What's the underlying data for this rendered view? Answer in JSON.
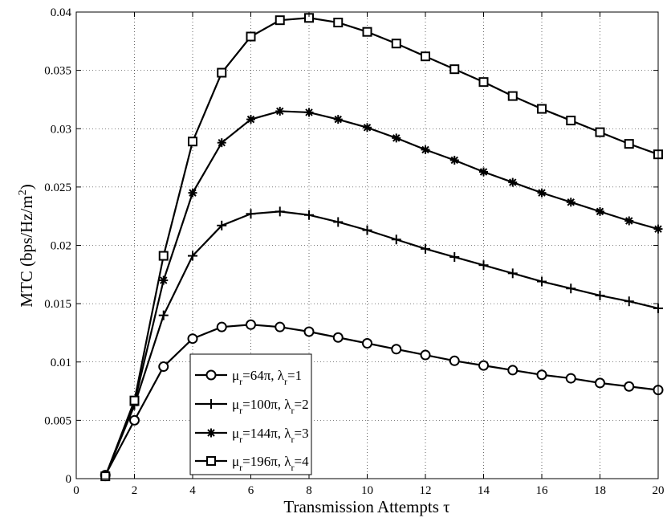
{
  "chart_data": {
    "type": "line",
    "xlabel": "Transmission Attempts τ",
    "ylabel": "MTC (bps/Hz/m²)",
    "ylabel_parts": {
      "main": "MTC (bps/Hz/m",
      "sup": "2",
      "tail": ")"
    },
    "xlim": [
      0,
      20
    ],
    "ylim": [
      0,
      0.04
    ],
    "xticks": [
      0,
      2,
      4,
      6,
      8,
      10,
      12,
      14,
      16,
      18,
      20
    ],
    "yticks": [
      0,
      0.005,
      0.01,
      0.015,
      0.02,
      0.025,
      0.03,
      0.035,
      0.04
    ],
    "ytick_labels": [
      "0",
      "0.005",
      "0.01",
      "0.015",
      "0.02",
      "0.025",
      "0.03",
      "0.035",
      "0.04"
    ],
    "grid": true,
    "legend_position": "bottom-left",
    "x": [
      1,
      2,
      3,
      4,
      5,
      6,
      7,
      8,
      9,
      10,
      11,
      12,
      13,
      14,
      15,
      16,
      17,
      18,
      19,
      20
    ],
    "series": [
      {
        "name": "μr=64π, λr=1",
        "legend": {
          "mu": "μ",
          "mu_sub": "r",
          "mu_val": "=64π, ",
          "lam": "λ",
          "lam_sub": "r",
          "lam_val": "=1"
        },
        "marker": "circle",
        "values": [
          0.0003,
          0.005,
          0.0096,
          0.012,
          0.013,
          0.0132,
          0.013,
          0.0126,
          0.0121,
          0.0116,
          0.0111,
          0.0106,
          0.0101,
          0.0097,
          0.0093,
          0.0089,
          0.0086,
          0.0082,
          0.0079,
          0.0076
        ]
      },
      {
        "name": "μr=100π, λr=2",
        "legend": {
          "mu": "μ",
          "mu_sub": "r",
          "mu_val": "=100π, ",
          "lam": "λ",
          "lam_sub": "r",
          "lam_val": "=2"
        },
        "marker": "plus",
        "values": [
          0.0002,
          0.0063,
          0.014,
          0.0191,
          0.0217,
          0.0227,
          0.0229,
          0.0226,
          0.022,
          0.0213,
          0.0205,
          0.0197,
          0.019,
          0.0183,
          0.0176,
          0.0169,
          0.0163,
          0.0157,
          0.0152,
          0.0146
        ]
      },
      {
        "name": "μr=144π, λr=3",
        "legend": {
          "mu": "μ",
          "mu_sub": "r",
          "mu_val": "=144π, ",
          "lam": "λ",
          "lam_sub": "r",
          "lam_val": "=3"
        },
        "marker": "star",
        "values": [
          0.0002,
          0.0065,
          0.017,
          0.0245,
          0.0288,
          0.0308,
          0.0315,
          0.0314,
          0.0308,
          0.0301,
          0.0292,
          0.0282,
          0.0273,
          0.0263,
          0.0254,
          0.0245,
          0.0237,
          0.0229,
          0.0221,
          0.0214
        ]
      },
      {
        "name": "μr=196π, λr=4",
        "legend": {
          "mu": "μ",
          "mu_sub": "r",
          "mu_val": "=196π, ",
          "lam": "λ",
          "lam_sub": "r",
          "lam_val": "=4"
        },
        "marker": "square",
        "values": [
          0.0002,
          0.0067,
          0.0191,
          0.0289,
          0.0348,
          0.0379,
          0.0393,
          0.0395,
          0.0391,
          0.0383,
          0.0373,
          0.0362,
          0.0351,
          0.034,
          0.0328,
          0.0317,
          0.0307,
          0.0297,
          0.0287,
          0.0278
        ]
      }
    ]
  }
}
